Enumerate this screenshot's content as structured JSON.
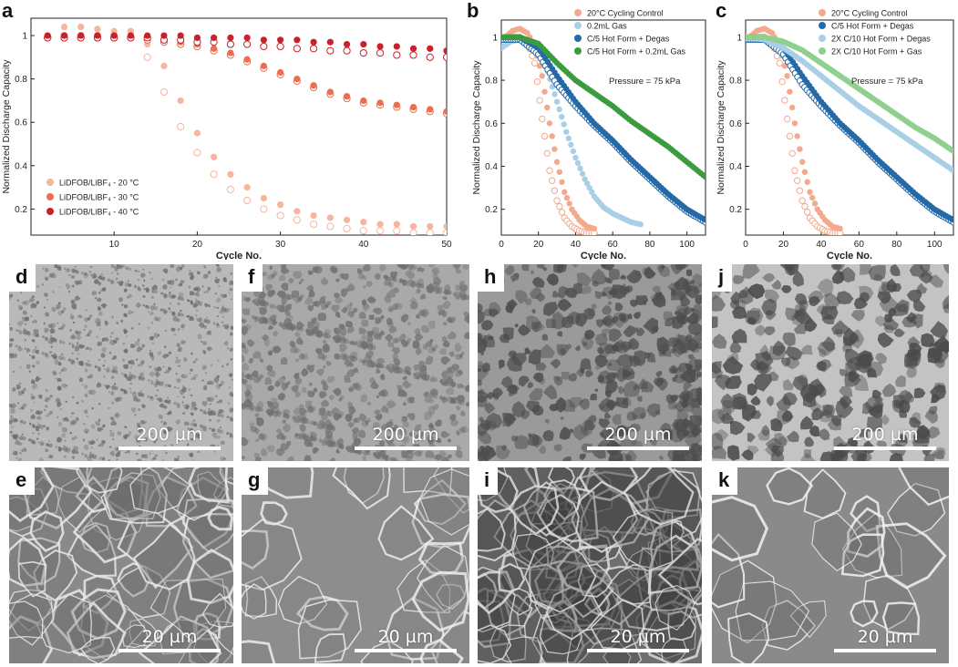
{
  "panels": {
    "a": "a",
    "b": "b",
    "c": "c",
    "d": "d",
    "e": "e",
    "f": "f",
    "g": "g",
    "h": "h",
    "i": "i",
    "j": "j",
    "k": "k"
  },
  "scale_labels": {
    "low_mag": "200 µm",
    "high_mag": "20 µm"
  },
  "chart_data": [
    {
      "id": "a",
      "type": "scatter",
      "xlabel": "Cycle No.",
      "ylabel": "Normalized Discharge Capacity",
      "xlim": [
        0,
        50
      ],
      "ylim": [
        0.08,
        1.08
      ],
      "xticks": [
        10,
        20,
        30,
        40,
        50
      ],
      "yticks": [
        0.2,
        0.4,
        0.6,
        0.8,
        1
      ],
      "ytick_labels": [
        "0.2",
        "0.4",
        "0.6",
        "0.8",
        "1"
      ],
      "legend_position": "bottom-left",
      "series": [
        {
          "name": "LiDFOB/LiBF₄ - 20 °C",
          "color": "#f6b59c",
          "x": [
            2,
            4,
            6,
            8,
            10,
            12,
            14,
            16,
            18,
            20,
            22,
            24,
            26,
            28,
            30,
            32,
            34,
            36,
            38,
            40,
            42,
            44,
            46,
            48,
            50
          ],
          "y": [
            1.0,
            1.04,
            1.04,
            1.03,
            1.02,
            1.02,
            0.96,
            0.86,
            0.7,
            0.55,
            0.44,
            0.36,
            0.3,
            0.25,
            0.22,
            0.19,
            0.17,
            0.16,
            0.15,
            0.14,
            0.13,
            0.13,
            0.12,
            0.12,
            0.12
          ],
          "open_y": [
            0.99,
            1.0,
            1.0,
            1.0,
            1.0,
            0.99,
            0.9,
            0.74,
            0.58,
            0.46,
            0.36,
            0.29,
            0.24,
            0.2,
            0.17,
            0.15,
            0.13,
            0.12,
            0.11,
            0.1,
            0.1,
            0.1,
            0.09,
            0.09,
            0.09
          ]
        },
        {
          "name": "LiDFOB/LiBF₄ - 30 °C",
          "color": "#ec6d4f",
          "x": [
            2,
            4,
            6,
            8,
            10,
            12,
            14,
            16,
            18,
            20,
            22,
            24,
            26,
            28,
            30,
            32,
            34,
            36,
            38,
            40,
            42,
            44,
            46,
            48,
            50
          ],
          "y": [
            1.0,
            1.0,
            1.0,
            1.0,
            1.0,
            1.0,
            0.99,
            0.98,
            0.97,
            0.96,
            0.94,
            0.92,
            0.89,
            0.86,
            0.83,
            0.8,
            0.77,
            0.74,
            0.72,
            0.7,
            0.69,
            0.68,
            0.67,
            0.66,
            0.65
          ],
          "open_y": [
            0.99,
            0.99,
            0.99,
            0.99,
            0.99,
            0.99,
            0.98,
            0.97,
            0.96,
            0.95,
            0.93,
            0.91,
            0.88,
            0.85,
            0.82,
            0.79,
            0.76,
            0.73,
            0.71,
            0.69,
            0.68,
            0.67,
            0.66,
            0.65,
            0.64
          ]
        },
        {
          "name": "LiDFOB/LiBF₄ - 40 °C",
          "color": "#c7212a",
          "x": [
            2,
            4,
            6,
            8,
            10,
            12,
            14,
            16,
            18,
            20,
            22,
            24,
            26,
            28,
            30,
            32,
            34,
            36,
            38,
            40,
            42,
            44,
            46,
            48,
            50
          ],
          "y": [
            1.0,
            1.0,
            1.0,
            1.0,
            1.0,
            1.0,
            1.0,
            1.0,
            1.0,
            0.99,
            0.99,
            0.99,
            0.99,
            0.98,
            0.98,
            0.98,
            0.97,
            0.97,
            0.96,
            0.96,
            0.95,
            0.95,
            0.94,
            0.94,
            0.93
          ],
          "open_y": [
            0.99,
            0.99,
            0.99,
            0.99,
            0.99,
            0.99,
            0.99,
            0.98,
            0.98,
            0.97,
            0.97,
            0.96,
            0.96,
            0.95,
            0.95,
            0.94,
            0.94,
            0.93,
            0.93,
            0.92,
            0.92,
            0.91,
            0.91,
            0.9,
            0.9
          ]
        }
      ]
    },
    {
      "id": "b",
      "type": "scatter",
      "xlabel": "Cycle No.",
      "ylabel": "Normalized Discharge Capacity",
      "xlim": [
        0,
        110
      ],
      "ylim": [
        0.08,
        1.08
      ],
      "xticks": [
        0,
        20,
        40,
        60,
        80,
        100
      ],
      "yticks": [
        0.2,
        0.4,
        0.6,
        0.8,
        1
      ],
      "ytick_labels": [
        "0.2",
        "0.4",
        "0.6",
        "0.8",
        "1"
      ],
      "legend_position": "top-right",
      "annotation": "Pressure = 75 kPa",
      "series": [
        {
          "name": "20°C Cycling Control",
          "color": "#f4a98c",
          "x": [
            2,
            6,
            10,
            14,
            18,
            22,
            26,
            30,
            34,
            38,
            42,
            46,
            50
          ],
          "y": [
            1.0,
            1.03,
            1.04,
            1.02,
            0.96,
            0.82,
            0.6,
            0.42,
            0.28,
            0.2,
            0.15,
            0.12,
            0.11
          ],
          "open_y": [
            0.99,
            1.0,
            1.0,
            0.98,
            0.88,
            0.62,
            0.38,
            0.24,
            0.16,
            0.12,
            0.1,
            0.09,
            0.09
          ]
        },
        {
          "name": "0.2mL Gas",
          "color": "#a9cfe6",
          "x": [
            0,
            5,
            10,
            15,
            20,
            25,
            30,
            35,
            40,
            45,
            50,
            55,
            60,
            65,
            70,
            75
          ],
          "y": [
            0.95,
            0.98,
            0.99,
            0.97,
            0.93,
            0.84,
            0.7,
            0.56,
            0.44,
            0.34,
            0.26,
            0.21,
            0.18,
            0.16,
            0.14,
            0.13
          ],
          "open_y": []
        },
        {
          "name": "C/5 Hot Form + Degas",
          "color": "#2469a8",
          "x": [
            0,
            10,
            20,
            30,
            40,
            50,
            60,
            70,
            80,
            90,
            100,
            110
          ],
          "y": [
            1.0,
            1.0,
            0.95,
            0.82,
            0.7,
            0.6,
            0.52,
            0.43,
            0.35,
            0.27,
            0.2,
            0.15
          ],
          "open_y": [
            0.99,
            0.99,
            0.92,
            0.78,
            0.68,
            0.59,
            0.51,
            0.42,
            0.34,
            0.26,
            0.19,
            0.14
          ]
        },
        {
          "name": "C/5 Hot Form + 0.2mL Gas",
          "color": "#3a9c3f",
          "x": [
            0,
            10,
            20,
            30,
            40,
            50,
            60,
            70,
            80,
            90,
            100,
            110
          ],
          "y": [
            1.0,
            1.0,
            0.97,
            0.88,
            0.8,
            0.74,
            0.68,
            0.61,
            0.55,
            0.49,
            0.42,
            0.35
          ],
          "open_y": []
        }
      ]
    },
    {
      "id": "c",
      "type": "scatter",
      "xlabel": "Cycle No.",
      "ylabel": "Normalized Discharge Capacity",
      "xlim": [
        0,
        110
      ],
      "ylim": [
        0.08,
        1.08
      ],
      "xticks": [
        0,
        20,
        40,
        60,
        80,
        100
      ],
      "yticks": [
        0.2,
        0.4,
        0.6,
        0.8,
        1
      ],
      "ytick_labels": [
        "0.2",
        "0.4",
        "0.6",
        "0.8",
        "1"
      ],
      "legend_position": "top-right",
      "annotation": "Pressure = 75 kPa",
      "series": [
        {
          "name": "20°C Cycling Control",
          "color": "#f4a98c",
          "x": [
            2,
            6,
            10,
            14,
            18,
            22,
            26,
            30,
            34,
            38,
            42,
            46,
            50
          ],
          "y": [
            1.0,
            1.03,
            1.04,
            1.02,
            0.96,
            0.82,
            0.6,
            0.42,
            0.28,
            0.2,
            0.15,
            0.12,
            0.11
          ],
          "open_y": [
            0.99,
            1.0,
            1.0,
            0.98,
            0.88,
            0.62,
            0.38,
            0.24,
            0.16,
            0.12,
            0.1,
            0.09,
            0.09
          ]
        },
        {
          "name": "C/5 Hot Form + Degas",
          "color": "#2469a8",
          "x": [
            0,
            10,
            20,
            30,
            40,
            50,
            60,
            70,
            80,
            90,
            100,
            110
          ],
          "y": [
            1.0,
            1.0,
            0.95,
            0.82,
            0.7,
            0.6,
            0.52,
            0.43,
            0.35,
            0.27,
            0.2,
            0.15
          ],
          "open_y": [
            0.99,
            0.99,
            0.92,
            0.78,
            0.68,
            0.59,
            0.51,
            0.42,
            0.34,
            0.26,
            0.19,
            0.14
          ]
        },
        {
          "name": "2X C/10 Hot Form + Degas",
          "color": "#a9cfe6",
          "x": [
            0,
            10,
            20,
            30,
            40,
            50,
            60,
            70,
            80,
            90,
            100,
            110
          ],
          "y": [
            1.0,
            0.99,
            0.95,
            0.89,
            0.82,
            0.75,
            0.68,
            0.62,
            0.56,
            0.5,
            0.44,
            0.38
          ],
          "open_y": []
        },
        {
          "name": "2X C/10 Hot Form + Gas",
          "color": "#8fd08f",
          "x": [
            0,
            10,
            20,
            30,
            40,
            50,
            60,
            70,
            80,
            90,
            100,
            110
          ],
          "y": [
            1.0,
            1.0,
            0.98,
            0.94,
            0.88,
            0.82,
            0.76,
            0.7,
            0.64,
            0.58,
            0.53,
            0.47
          ],
          "open_y": []
        }
      ]
    }
  ]
}
